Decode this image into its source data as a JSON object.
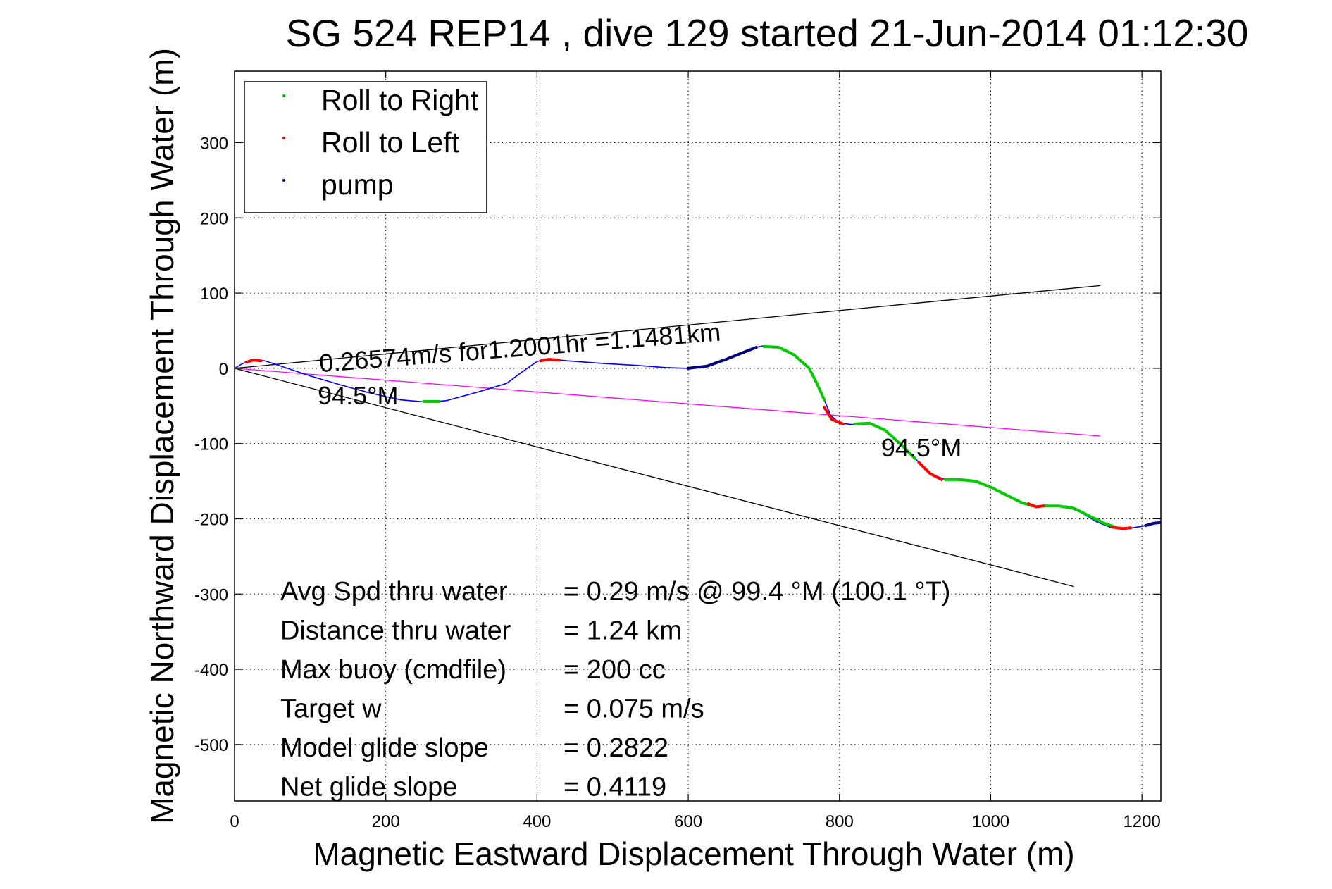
{
  "chart_data": {
    "type": "line",
    "title": "SG 524   REP14  , dive 129 started 21-Jun-2014 01:12:30",
    "xlabel": "Magnetic Eastward Displacement Through Water (m)",
    "ylabel": "Magnetic Northward Displacement Through Water (m)",
    "xlim": [
      0,
      1225
    ],
    "ylim": [
      -575,
      395
    ],
    "x_ticks": [
      0,
      200,
      400,
      600,
      800,
      1000,
      1200
    ],
    "y_ticks": [
      300,
      200,
      100,
      0,
      -100,
      -200,
      -300,
      -400,
      -500
    ],
    "grid": true,
    "legend_position": "top-left",
    "legend": [
      {
        "label": "Roll to Right",
        "color": "#00cc00"
      },
      {
        "label": "Roll to Left",
        "color": "#ff0000"
      },
      {
        "label": "pump",
        "color": "#000080"
      }
    ],
    "track": {
      "name": "track",
      "color": "#0000ff",
      "x": [
        0,
        10,
        20,
        30,
        40,
        55,
        70,
        100,
        140,
        180,
        220,
        255,
        280,
        320,
        360,
        380,
        400,
        410,
        420,
        440,
        480,
        530,
        570,
        600,
        625,
        650,
        670,
        690,
        700,
        720,
        740,
        760,
        770,
        780,
        788,
        800,
        820,
        840,
        860,
        880,
        900,
        920,
        940,
        960,
        980,
        1000,
        1020,
        1040,
        1060,
        1080,
        1100,
        1120,
        1140,
        1160,
        1180,
        1200,
        1210,
        1225
      ],
      "y": [
        0,
        6,
        10,
        11,
        10,
        5,
        0,
        -10,
        -22,
        -33,
        -42,
        -45,
        -43,
        -32,
        -20,
        -5,
        9,
        12,
        12,
        10,
        7,
        4,
        1,
        0,
        3,
        12,
        20,
        28,
        30,
        28,
        18,
        0,
        -20,
        -42,
        -62,
        -73,
        -75,
        -73,
        -82,
        -100,
        -120,
        -140,
        -148,
        -148,
        -150,
        -158,
        -168,
        -178,
        -184,
        -183,
        -183,
        -192,
        -204,
        -212,
        -213,
        -210,
        -207,
        -205
      ]
    },
    "roll_to_right_segments": [
      {
        "x": [
          250,
          270
        ],
        "y": [
          -44,
          -44
        ]
      },
      {
        "x": [
          700,
          720,
          740,
          760,
          770,
          780
        ],
        "y": [
          29,
          28,
          18,
          0,
          -20,
          -42
        ]
      },
      {
        "x": [
          820,
          840,
          860,
          880,
          900
        ],
        "y": [
          -74,
          -73,
          -82,
          -100,
          -120
        ]
      },
      {
        "x": [
          940,
          960,
          980,
          1000,
          1020,
          1040,
          1055
        ],
        "y": [
          -148,
          -148,
          -150,
          -158,
          -168,
          -178,
          -183
        ]
      },
      {
        "x": [
          1070,
          1090,
          1110,
          1130,
          1150,
          1165
        ],
        "y": [
          -183,
          -183,
          -186,
          -196,
          -206,
          -211
        ]
      }
    ],
    "roll_to_left_segments": [
      {
        "x": [
          15,
          25,
          35
        ],
        "y": [
          8,
          11,
          10
        ]
      },
      {
        "x": [
          405,
          415,
          430
        ],
        "y": [
          10,
          12,
          11
        ]
      },
      {
        "x": [
          780,
          790,
          805
        ],
        "y": [
          -52,
          -68,
          -74
        ]
      },
      {
        "x": [
          905,
          920,
          935
        ],
        "y": [
          -125,
          -140,
          -148
        ]
      },
      {
        "x": [
          1050,
          1060,
          1070
        ],
        "y": [
          -180,
          -184,
          -183
        ]
      },
      {
        "x": [
          1160,
          1175,
          1185
        ],
        "y": [
          -211,
          -213,
          -212
        ]
      }
    ],
    "pump_segments": [
      {
        "x": [
          600,
          625,
          650,
          670,
          690
        ],
        "y": [
          0,
          3,
          12,
          20,
          28
        ]
      },
      {
        "x": [
          1205,
          1215,
          1225
        ],
        "y": [
          -209,
          -206,
          -205
        ]
      }
    ],
    "cone_lines": {
      "color": "#000000",
      "upper": {
        "x": [
          0,
          1145
        ],
        "y": [
          0,
          110
        ]
      },
      "lower": {
        "x": [
          0,
          1110
        ],
        "y": [
          0,
          -290
        ]
      }
    },
    "heading_line": {
      "color": "#ff00ff",
      "x": [
        0,
        1145
      ],
      "y": [
        0,
        -90
      ]
    },
    "annotations": [
      {
        "text": "0.26574m/s for1.2001hr =1.1481km",
        "x": 113,
        "y": -5,
        "rotate": -4.5
      },
      {
        "text": "94.5°M",
        "x": 110,
        "y": -48,
        "rotate": 0
      },
      {
        "text": "94.5°M",
        "x": 855,
        "y": -117,
        "rotate": 0
      }
    ],
    "stats": [
      {
        "label": "Avg Spd thru water",
        "value": "=  0.29 m/s @  99.4 °M (100.1 °T)"
      },
      {
        "label": "Distance thru water",
        "value": "=  1.24 km"
      },
      {
        "label": "Max buoy (cmdfile)",
        "value": "= 200 cc"
      },
      {
        "label": "Target w",
        "value": "= 0.075 m/s"
      },
      {
        "label": "Model glide slope",
        "value": "= 0.2822"
      },
      {
        "label": "Net glide slope",
        "value": "= 0.4119"
      }
    ]
  }
}
